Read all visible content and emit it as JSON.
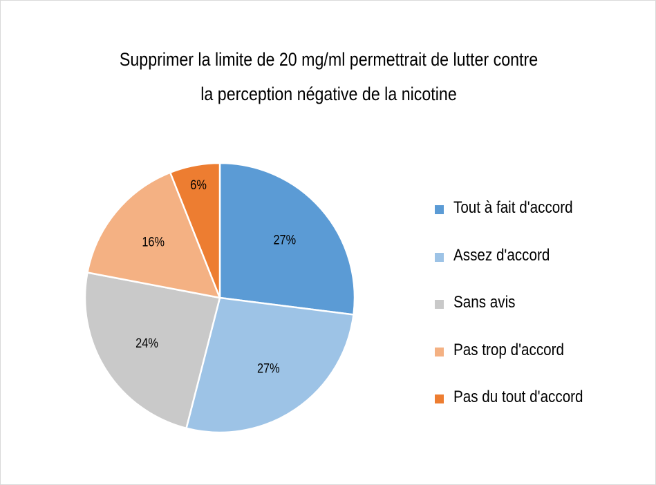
{
  "chart_data": {
    "type": "pie",
    "title_lines": [
      "Supprimer la limite de 20 mg/ml permettrait de lutter contre",
      "la perception négative de la nicotine"
    ],
    "slices": [
      {
        "label": "Tout à fait d'accord",
        "value": 27,
        "display": "27%",
        "color": "#5b9bd5"
      },
      {
        "label": "Assez d'accord",
        "value": 27,
        "display": "27%",
        "color": "#9dc3e6"
      },
      {
        "label": "Sans avis",
        "value": 24,
        "display": "24%",
        "color": "#c9c9c9"
      },
      {
        "label": "Pas trop d'accord",
        "value": 16,
        "display": "16%",
        "color": "#f4b183"
      },
      {
        "label": "Pas du tout d'accord",
        "value": 6,
        "display": "6%",
        "color": "#ed7d31"
      }
    ],
    "legend_position": "right",
    "start_angle": "12 o'clock",
    "direction": "clockwise"
  }
}
